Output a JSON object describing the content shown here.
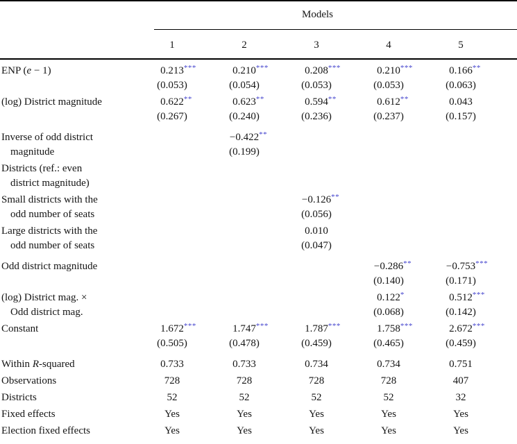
{
  "style": {
    "star_color": "#4040cc",
    "text_color": "#141414",
    "rule_color": "#000000"
  },
  "header": {
    "group_label": "Models",
    "columns": [
      "1",
      "2",
      "3",
      "4",
      "5"
    ]
  },
  "rows": [
    {
      "label": [
        {
          "t": "ENP ("
        },
        {
          "t": "e",
          "i": true
        },
        {
          "t": " − 1)"
        }
      ],
      "indent": false,
      "gap": 0,
      "cells": [
        {
          "v": "0.213",
          "s": "***"
        },
        {
          "v": "0.210",
          "s": "***"
        },
        {
          "v": "0.208",
          "s": "***"
        },
        {
          "v": "0.210",
          "s": "***"
        },
        {
          "v": "0.166",
          "s": "**"
        }
      ]
    },
    {
      "label": [],
      "indent": false,
      "gap": 0,
      "cells": [
        {
          "v": "(0.053)"
        },
        {
          "v": "(0.054)"
        },
        {
          "v": "(0.053)"
        },
        {
          "v": "(0.053)"
        },
        {
          "v": "(0.063)"
        }
      ]
    },
    {
      "label": [
        {
          "t": "(log) District magnitude"
        }
      ],
      "indent": false,
      "gap": 1,
      "cells": [
        {
          "v": "0.622",
          "s": "**"
        },
        {
          "v": "0.623",
          "s": "**"
        },
        {
          "v": "0.594",
          "s": "**"
        },
        {
          "v": "0.612",
          "s": "**"
        },
        {
          "v": "0.043"
        }
      ]
    },
    {
      "label": [],
      "indent": false,
      "gap": 0,
      "cells": [
        {
          "v": "(0.267)"
        },
        {
          "v": "(0.240)"
        },
        {
          "v": "(0.236)"
        },
        {
          "v": "(0.237)"
        },
        {
          "v": "(0.157)"
        }
      ]
    },
    {
      "label": [
        {
          "t": "Inverse of odd district"
        }
      ],
      "indent": false,
      "gap": 2,
      "cells": [
        null,
        {
          "v": "−0.422",
          "s": "**"
        },
        null,
        null,
        null
      ]
    },
    {
      "label": [
        {
          "t": "magnitude"
        }
      ],
      "indent": true,
      "gap": 0,
      "cells": [
        null,
        {
          "v": "(0.199)"
        },
        null,
        null,
        null
      ]
    },
    {
      "label": [
        {
          "t": "Districts (ref.: even"
        }
      ],
      "indent": false,
      "gap": 1,
      "cells": [
        null,
        null,
        null,
        null,
        null
      ]
    },
    {
      "label": [
        {
          "t": "district magnitude)"
        }
      ],
      "indent": true,
      "gap": 0,
      "cells": [
        null,
        null,
        null,
        null,
        null
      ]
    },
    {
      "label": [
        {
          "t": "Small districts with the"
        }
      ],
      "indent": false,
      "gap": 1,
      "cells": [
        null,
        null,
        {
          "v": "−0.126",
          "s": "**"
        },
        null,
        null
      ]
    },
    {
      "label": [
        {
          "t": "odd number of seats"
        }
      ],
      "indent": true,
      "gap": 0,
      "cells": [
        null,
        null,
        {
          "v": "(0.056)"
        },
        null,
        null
      ]
    },
    {
      "label": [
        {
          "t": "Large districts with the"
        }
      ],
      "indent": false,
      "gap": 1,
      "cells": [
        null,
        null,
        {
          "v": "0.010"
        },
        null,
        null
      ]
    },
    {
      "label": [
        {
          "t": "odd number of seats"
        }
      ],
      "indent": true,
      "gap": 0,
      "cells": [
        null,
        null,
        {
          "v": "(0.047)"
        },
        null,
        null
      ]
    },
    {
      "label": [
        {
          "t": "Odd district magnitude"
        }
      ],
      "indent": false,
      "gap": 2,
      "cells": [
        null,
        null,
        null,
        {
          "v": "−0.286",
          "s": "**"
        },
        {
          "v": "−0.753",
          "s": "***"
        }
      ]
    },
    {
      "label": [],
      "indent": false,
      "gap": 0,
      "cells": [
        null,
        null,
        null,
        {
          "v": "(0.140)"
        },
        {
          "v": "(0.171)"
        }
      ]
    },
    {
      "label": [
        {
          "t": "(log) District mag. ×"
        }
      ],
      "indent": false,
      "gap": 1,
      "cells": [
        null,
        null,
        null,
        {
          "v": "0.122",
          "s": "*"
        },
        {
          "v": "0.512",
          "s": "***"
        }
      ]
    },
    {
      "label": [
        {
          "t": "Odd district mag."
        }
      ],
      "indent": true,
      "gap": 0,
      "cells": [
        null,
        null,
        null,
        {
          "v": "(0.068)"
        },
        {
          "v": "(0.142)"
        }
      ]
    },
    {
      "label": [
        {
          "t": "Constant"
        }
      ],
      "indent": false,
      "gap": 1,
      "cells": [
        {
          "v": "1.672",
          "s": "***"
        },
        {
          "v": "1.747",
          "s": "***"
        },
        {
          "v": "1.787",
          "s": "***"
        },
        {
          "v": "1.758",
          "s": "***"
        },
        {
          "v": "2.672",
          "s": "***"
        }
      ]
    },
    {
      "label": [],
      "indent": false,
      "gap": 0,
      "cells": [
        {
          "v": "(0.505)"
        },
        {
          "v": "(0.478)"
        },
        {
          "v": "(0.459)"
        },
        {
          "v": "(0.465)"
        },
        {
          "v": "(0.459)"
        }
      ]
    },
    {
      "label": [
        {
          "t": "Within "
        },
        {
          "t": "R",
          "i": true
        },
        {
          "t": "-squared"
        }
      ],
      "indent": false,
      "gap": 2,
      "cells": [
        {
          "v": "0.733"
        },
        {
          "v": "0.733"
        },
        {
          "v": "0.734"
        },
        {
          "v": "0.734"
        },
        {
          "v": "0.751"
        }
      ]
    },
    {
      "label": [
        {
          "t": "Observations"
        }
      ],
      "indent": false,
      "gap": 1,
      "cells": [
        {
          "v": "728"
        },
        {
          "v": "728"
        },
        {
          "v": "728"
        },
        {
          "v": "728"
        },
        {
          "v": "407"
        }
      ]
    },
    {
      "label": [
        {
          "t": "Districts"
        }
      ],
      "indent": false,
      "gap": 1,
      "cells": [
        {
          "v": "52"
        },
        {
          "v": "52"
        },
        {
          "v": "52"
        },
        {
          "v": "52"
        },
        {
          "v": "32"
        }
      ]
    },
    {
      "label": [
        {
          "t": "Fixed effects"
        }
      ],
      "indent": false,
      "gap": 1,
      "cells": [
        {
          "v": "Yes"
        },
        {
          "v": "Yes"
        },
        {
          "v": "Yes"
        },
        {
          "v": "Yes"
        },
        {
          "v": "Yes"
        }
      ]
    },
    {
      "label": [
        {
          "t": "Election fixed effects"
        }
      ],
      "indent": false,
      "gap": 1,
      "cells": [
        {
          "v": "Yes"
        },
        {
          "v": "Yes"
        },
        {
          "v": "Yes"
        },
        {
          "v": "Yes"
        },
        {
          "v": "Yes"
        }
      ]
    }
  ]
}
